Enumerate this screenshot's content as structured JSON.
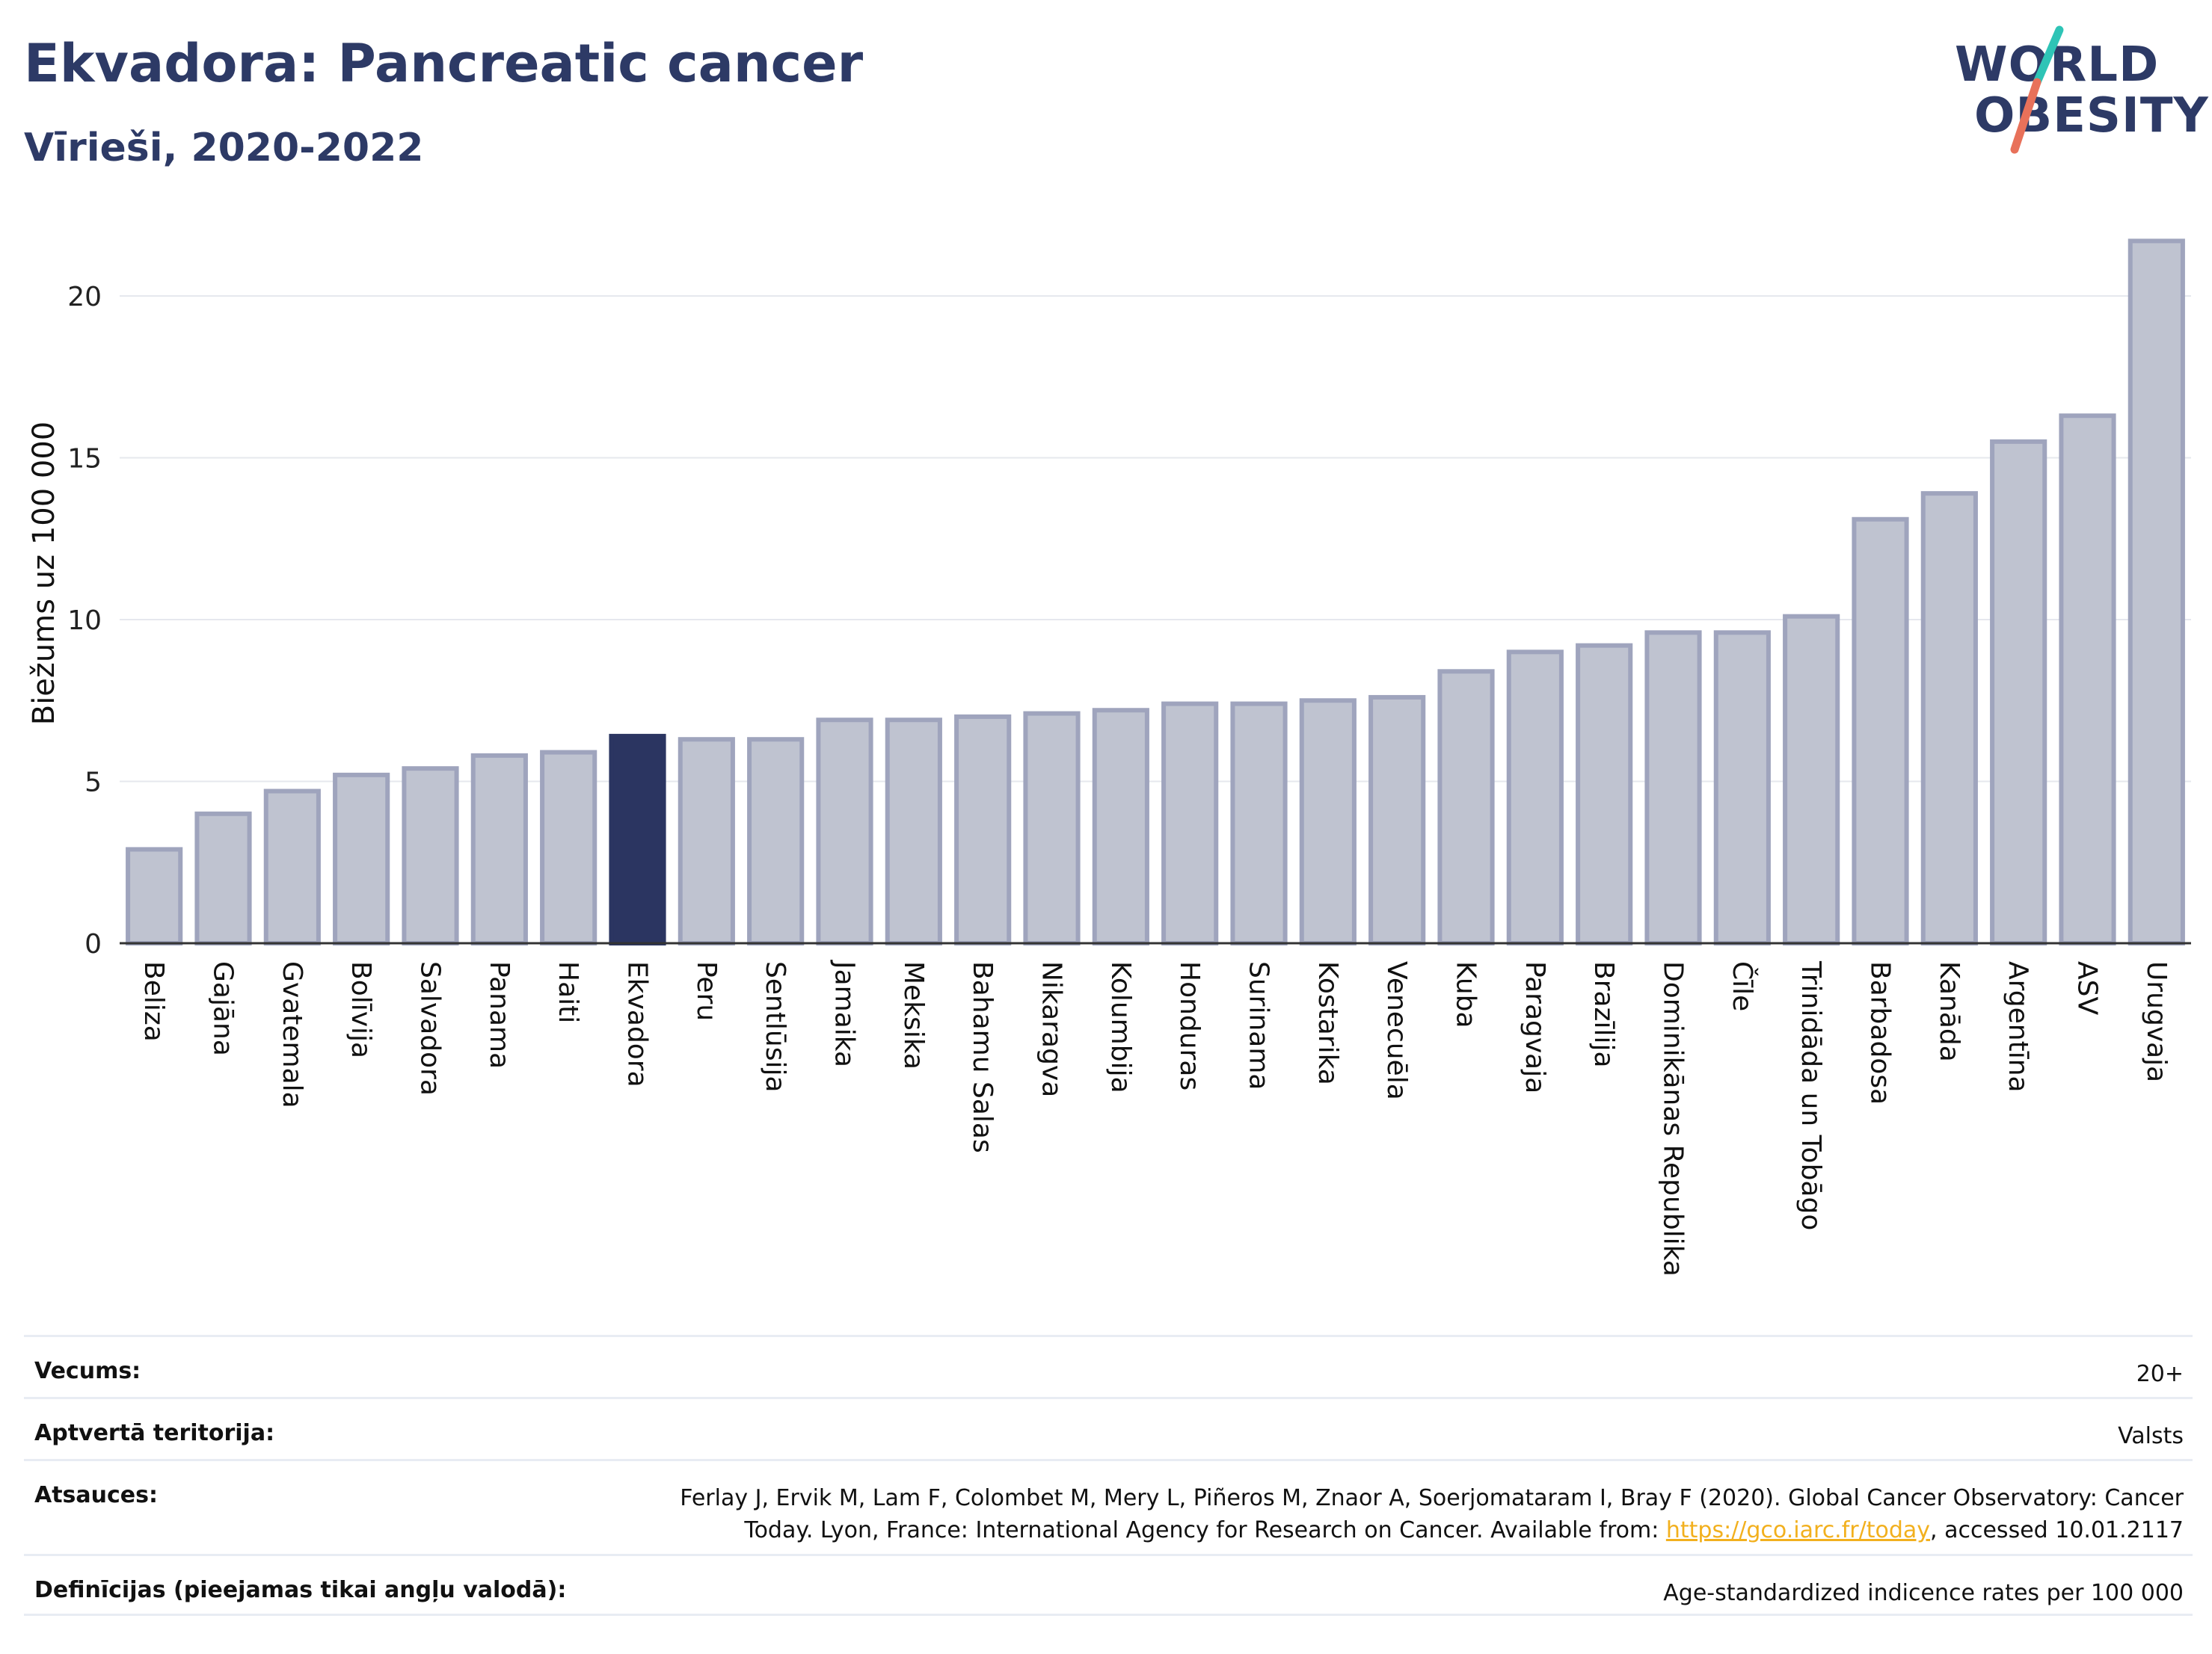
{
  "header": {
    "title": "Ekvadora: Pancreatic cancer",
    "subtitle": "Vīrieši, 2020-2022"
  },
  "logo": {
    "line1": "WORLD",
    "line2": "OBESITY",
    "slash_colors": [
      "#2ec4b6",
      "#e8715a"
    ]
  },
  "colors": {
    "bar": "#bfc3d0",
    "bar_stroke": "#9fa4bd",
    "highlight": "#2b3561",
    "text_dark": "#2d3a66",
    "grid": "#e6e8ee",
    "link": "#f2b01e"
  },
  "chart_data": {
    "type": "bar",
    "title": "Ekvadora: Pancreatic cancer",
    "subtitle": "Vīrieši, 2020-2022",
    "ylabel": "Biežums uz 100 000",
    "xlabel": "",
    "ylim": [
      0,
      22.5
    ],
    "yticks": [
      0,
      5,
      10,
      15,
      20
    ],
    "grid": true,
    "highlight": "Ekvadora",
    "categories": [
      "Beliza",
      "Gajāna",
      "Gvatemala",
      "Bolīvija",
      "Salvadora",
      "Panama",
      "Haiti",
      "Ekvadora",
      "Peru",
      "Sentlūsija",
      "Jamaika",
      "Meksika",
      "Bahamu Salas",
      "Nikaragva",
      "Kolumbija",
      "Honduras",
      "Surinama",
      "Kostarika",
      "Venecuēla",
      "Kuba",
      "Paragvaja",
      "Brazīlija",
      "Dominikānas Republika",
      "Čīle",
      "Trinidāda un Tobāgo",
      "Barbadosa",
      "Kanāda",
      "Argentīna",
      "ASV",
      "Urugvaja"
    ],
    "values": [
      2.9,
      4.0,
      4.7,
      5.2,
      5.4,
      5.8,
      5.9,
      6.4,
      6.3,
      6.3,
      6.9,
      6.9,
      7.0,
      7.1,
      7.2,
      7.4,
      7.4,
      7.5,
      7.6,
      8.4,
      9.0,
      9.2,
      9.6,
      9.6,
      10.1,
      13.1,
      13.9,
      15.5,
      16.3,
      21.7
    ]
  },
  "meta": {
    "age_label": "Vecums:",
    "age_value": "20+",
    "territory_label": "Aptvertā teritorija:",
    "territory_value": "Valsts",
    "refs_label": "Atsauces:",
    "refs_text_1": "Ferlay J, Ervik M, Lam F, Colombet M, Mery L, Piñeros M, Znaor A, Soerjomataram I, Bray F (2020). Global Cancer Observatory: Cancer",
    "refs_text_2": "Today. Lyon, France: International Agency for Research on Cancer. Available from: ",
    "refs_link": "https://gco.iarc.fr/today",
    "refs_text_3": ", accessed 10.01.2117",
    "definitions_label": "Definīcijas (pieejamas tikai angļu valodā):",
    "definitions_value": "Age-standardized indicence rates per 100 000"
  }
}
